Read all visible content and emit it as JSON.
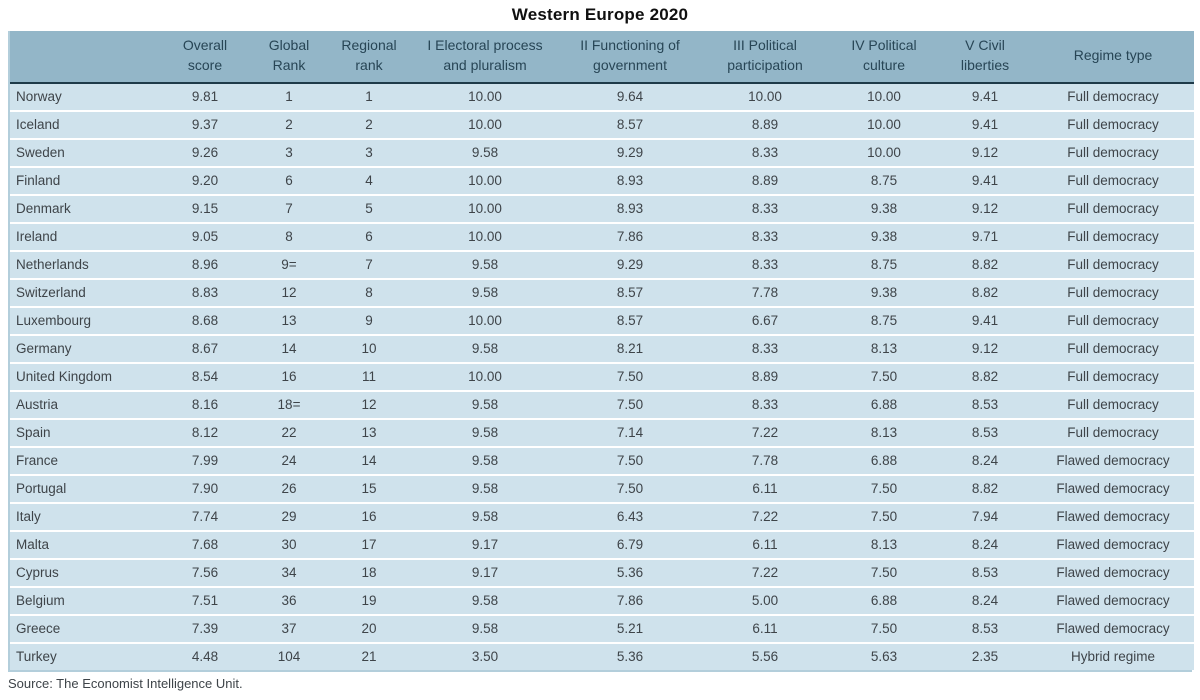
{
  "title": "Western Europe 2020",
  "source": "Source: The Economist Intelligence Unit.",
  "colors": {
    "header_bg": "#93b6c8",
    "row_bg": "#cfe2ec",
    "header_rule": "#1e3a49",
    "outer_border": "#b3cedb",
    "header_text": "#274555",
    "body_text": "#3e4449",
    "title_text": "#101010"
  },
  "chart_data": {
    "type": "table",
    "title": "Western Europe 2020",
    "columns": [
      {
        "id": "country",
        "label": "",
        "lines": [
          ""
        ]
      },
      {
        "id": "overall-score",
        "label": "Overall score",
        "lines": [
          "Overall",
          "score"
        ]
      },
      {
        "id": "global-rank",
        "label": "Global Rank",
        "lines": [
          "Global",
          "Rank"
        ]
      },
      {
        "id": "regional-rank",
        "label": "Regional rank",
        "lines": [
          "Regional",
          "rank"
        ]
      },
      {
        "id": "electoral-process",
        "label": "I Electoral process and pluralism",
        "lines": [
          "I Electoral process",
          "and pluralism"
        ]
      },
      {
        "id": "functioning-of-government",
        "label": "II Functioning of government",
        "lines": [
          "II Functioning of",
          "government"
        ]
      },
      {
        "id": "political-participation",
        "label": "III Political participation",
        "lines": [
          "III Political",
          "participation"
        ]
      },
      {
        "id": "political-culture",
        "label": "IV Political culture",
        "lines": [
          "IV Political",
          "culture"
        ]
      },
      {
        "id": "civil-liberties",
        "label": "V Civil liberties",
        "lines": [
          "V Civil",
          "liberties"
        ]
      },
      {
        "id": "regime-type",
        "label": "Regime type",
        "lines": [
          "Regime type"
        ]
      }
    ],
    "rows": [
      [
        "Norway",
        "9.81",
        "1",
        "1",
        "10.00",
        "9.64",
        "10.00",
        "10.00",
        "9.41",
        "Full democracy"
      ],
      [
        "Iceland",
        "9.37",
        "2",
        "2",
        "10.00",
        "8.57",
        "8.89",
        "10.00",
        "9.41",
        "Full democracy"
      ],
      [
        "Sweden",
        "9.26",
        "3",
        "3",
        "9.58",
        "9.29",
        "8.33",
        "10.00",
        "9.12",
        "Full democracy"
      ],
      [
        "Finland",
        "9.20",
        "6",
        "4",
        "10.00",
        "8.93",
        "8.89",
        "8.75",
        "9.41",
        "Full democracy"
      ],
      [
        "Denmark",
        "9.15",
        "7",
        "5",
        "10.00",
        "8.93",
        "8.33",
        "9.38",
        "9.12",
        "Full democracy"
      ],
      [
        "Ireland",
        "9.05",
        "8",
        "6",
        "10.00",
        "7.86",
        "8.33",
        "9.38",
        "9.71",
        "Full democracy"
      ],
      [
        "Netherlands",
        "8.96",
        "9=",
        "7",
        "9.58",
        "9.29",
        "8.33",
        "8.75",
        "8.82",
        "Full democracy"
      ],
      [
        "Switzerland",
        "8.83",
        "12",
        "8",
        "9.58",
        "8.57",
        "7.78",
        "9.38",
        "8.82",
        "Full democracy"
      ],
      [
        "Luxembourg",
        "8.68",
        "13",
        "9",
        "10.00",
        "8.57",
        "6.67",
        "8.75",
        "9.41",
        "Full democracy"
      ],
      [
        "Germany",
        "8.67",
        "14",
        "10",
        "9.58",
        "8.21",
        "8.33",
        "8.13",
        "9.12",
        "Full democracy"
      ],
      [
        "United Kingdom",
        "8.54",
        "16",
        "11",
        "10.00",
        "7.50",
        "8.89",
        "7.50",
        "8.82",
        "Full democracy"
      ],
      [
        "Austria",
        "8.16",
        "18=",
        "12",
        "9.58",
        "7.50",
        "8.33",
        "6.88",
        "8.53",
        "Full democracy"
      ],
      [
        "Spain",
        "8.12",
        "22",
        "13",
        "9.58",
        "7.14",
        "7.22",
        "8.13",
        "8.53",
        "Full democracy"
      ],
      [
        "France",
        "7.99",
        "24",
        "14",
        "9.58",
        "7.50",
        "7.78",
        "6.88",
        "8.24",
        "Flawed democracy"
      ],
      [
        "Portugal",
        "7.90",
        "26",
        "15",
        "9.58",
        "7.50",
        "6.11",
        "7.50",
        "8.82",
        "Flawed democracy"
      ],
      [
        "Italy",
        "7.74",
        "29",
        "16",
        "9.58",
        "6.43",
        "7.22",
        "7.50",
        "7.94",
        "Flawed democracy"
      ],
      [
        "Malta",
        "7.68",
        "30",
        "17",
        "9.17",
        "6.79",
        "6.11",
        "8.13",
        "8.24",
        "Flawed democracy"
      ],
      [
        "Cyprus",
        "7.56",
        "34",
        "18",
        "9.17",
        "5.36",
        "7.22",
        "7.50",
        "8.53",
        "Flawed democracy"
      ],
      [
        "Belgium",
        "7.51",
        "36",
        "19",
        "9.58",
        "7.86",
        "5.00",
        "6.88",
        "8.24",
        "Flawed democracy"
      ],
      [
        "Greece",
        "7.39",
        "37",
        "20",
        "9.58",
        "5.21",
        "6.11",
        "7.50",
        "8.53",
        "Flawed democracy"
      ],
      [
        "Turkey",
        "4.48",
        "104",
        "21",
        "3.50",
        "5.36",
        "5.56",
        "5.63",
        "2.35",
        "Hybrid regime"
      ]
    ]
  }
}
